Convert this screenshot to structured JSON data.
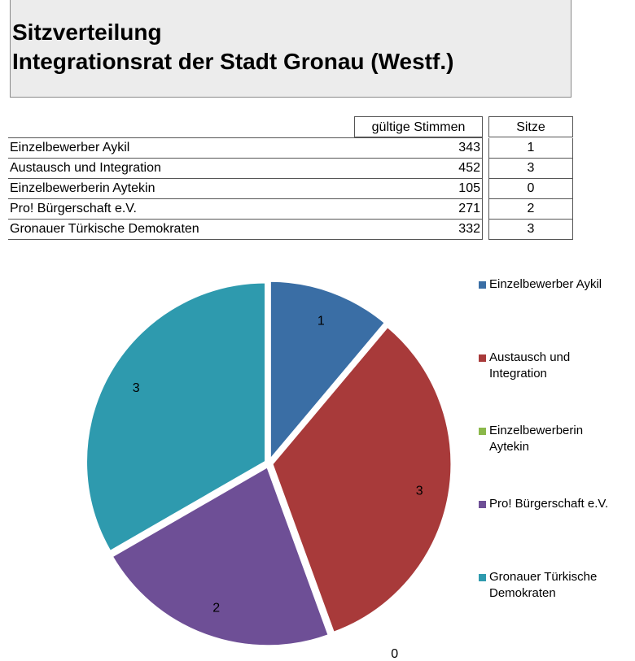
{
  "title": {
    "line1": "Sitzverteilung",
    "line2": "Integrationsrat der Stadt Gronau (Westf.)"
  },
  "table": {
    "headers": {
      "votes": "gültige Stimmen",
      "seats": "Sitze"
    },
    "rows": [
      {
        "name": "Einzelbewerber Aykil",
        "votes": "343",
        "seats": "1"
      },
      {
        "name": "Austausch und Integration",
        "votes": "452",
        "seats": "3"
      },
      {
        "name": "Einzelbewerberin Aytekin",
        "votes": "105",
        "seats": "0"
      },
      {
        "name": "Pro! Bürgerschaft e.V.",
        "votes": "271",
        "seats": "2"
      },
      {
        "name": "Gronauer Türkische Demokraten",
        "votes": "332",
        "seats": "3"
      }
    ]
  },
  "chart_data": {
    "type": "pie",
    "categories": [
      "Einzelbewerber Aykil",
      "Austausch und Integration",
      "Einzelbewerberin Aytekin",
      "Pro! Bürgerschaft e.V.",
      "Gronauer Türkische Demokraten"
    ],
    "legend_labels": [
      [
        "Einzelbewerber Aykil"
      ],
      [
        "Austausch und",
        "Integration"
      ],
      [
        "Einzelbewerberin",
        "Aytekin"
      ],
      [
        "Pro! Bürgerschaft e.V."
      ],
      [
        "Gronauer Türkische",
        "Demokraten"
      ]
    ],
    "values": [
      1,
      3,
      0,
      2,
      3
    ],
    "data_labels": [
      "1",
      "3",
      "0",
      "2",
      "3"
    ],
    "colors": [
      "#3a6ea5",
      "#a83a3a",
      "#8bb84a",
      "#6e4f96",
      "#2e9aae"
    ],
    "legend_position": "right"
  }
}
